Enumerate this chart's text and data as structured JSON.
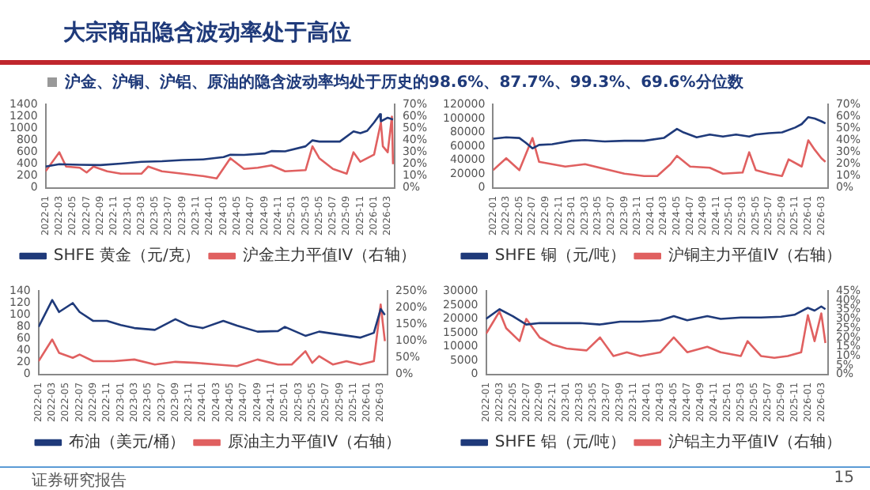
{
  "chart_data": [
    {
      "type": "other",
      "title": "大宗商品隐含波动率处于高位",
      "subtitle": "沪金、沪铜、沪铝、原油的隐含波动率均处于历史的98.6%、87.7%、99.3%、69.6%分位数",
      "annotations": [
        "证券研究报告",
        "15"
      ]
    },
    {
      "type": "line",
      "legend": "bottom",
      "marker": "none",
      "xlim": [
        "2022-01",
        "2026-04"
      ],
      "xticks": [
        "2022-01",
        "2022-03",
        "2022-05",
        "2022-07",
        "2022-09",
        "2022-11",
        "2023-01",
        "2023-03",
        "2023-05",
        "2023-07",
        "2023-09",
        "2023-11",
        "2024-01",
        "2024-03",
        "2024-05",
        "2024-07",
        "2024-09",
        "2024-11",
        "2025-01",
        "2025-03",
        "2025-05",
        "2025-07",
        "2025-09",
        "2025-11",
        "2026-01",
        "2026-03"
      ],
      "ylim": [
        0,
        1400
      ],
      "yticks": [
        0,
        200,
        400,
        600,
        800,
        1000,
        1200,
        1400
      ],
      "y2lim": [
        0,
        70
      ],
      "y2ticks": [
        {
          "value": 0,
          "label": "0%"
        },
        {
          "value": 10,
          "label": "10%"
        },
        {
          "value": 20,
          "label": "20%"
        },
        {
          "value": 30,
          "label": "30%"
        },
        {
          "value": 40,
          "label": "40%"
        },
        {
          "value": 50,
          "label": "50%"
        },
        {
          "value": 60,
          "label": "60%"
        },
        {
          "value": 70,
          "label": "70%"
        }
      ],
      "series": [
        {
          "name": "SHFE 黄金（元/克）",
          "color": "#1f3a7a",
          "x": [
            "2022-01",
            "2022-03",
            "2022-06",
            "2022-09",
            "2022-12",
            "2023-03",
            "2023-06",
            "2023-09",
            "2023-12",
            "2024-03",
            "2024-04",
            "2024-06",
            "2024-09",
            "2024-10",
            "2024-12",
            "2025-03",
            "2025-04",
            "2025-05",
            "2025-08",
            "2025-10",
            "2025-11",
            "2025-12",
            "2026-01",
            "2026-01-28",
            "2026-02",
            "2026-03",
            "2026-03-25"
          ],
          "values": [
            360,
            400,
            390,
            385,
            410,
            440,
            450,
            470,
            480,
            520,
            560,
            555,
            580,
            620,
            615,
            700,
            800,
            780,
            780,
            950,
            920,
            960,
            1100,
            1240,
            1120,
            1180,
            1150
          ]
        },
        {
          "name": "沪金主力平值IV（右轴）",
          "color": "#e06060",
          "axis": "y2",
          "x": [
            "2022-01",
            "2022-03",
            "2022-04",
            "2022-06",
            "2022-07",
            "2022-08",
            "2022-10",
            "2022-12",
            "2023-03",
            "2023-04",
            "2023-06",
            "2023-09",
            "2023-12",
            "2024-02",
            "2024-04",
            "2024-06",
            "2024-08",
            "2024-10",
            "2024-12",
            "2025-03",
            "2025-04",
            "2025-05",
            "2025-07",
            "2025-09",
            "2025-10",
            "2025-11",
            "2025-12",
            "2026-01",
            "2026-02",
            "2026-02-10",
            "2026-03",
            "2026-03-20",
            "2026-03-25"
          ],
          "values": [
            14,
            30,
            18,
            17,
            13,
            18,
            14,
            12,
            12,
            18,
            14,
            12,
            10,
            8,
            25,
            16,
            17,
            19,
            14,
            15,
            35,
            25,
            16,
            12,
            30,
            22,
            25,
            28,
            55,
            35,
            30,
            60,
            20
          ]
        }
      ]
    },
    {
      "type": "line",
      "legend": "bottom",
      "marker": "none",
      "xlim": [
        "2022-01",
        "2026-04"
      ],
      "xticks": [
        "2022-01",
        "2022-03",
        "2022-05",
        "2022-07",
        "2022-09",
        "2022-11",
        "2023-01",
        "2023-03",
        "2023-05",
        "2023-07",
        "2023-09",
        "2023-11",
        "2024-01",
        "2024-03",
        "2024-05",
        "2024-07",
        "2024-09",
        "2024-11",
        "2025-01",
        "2025-03",
        "2025-05",
        "2025-07",
        "2025-09",
        "2025-11",
        "2026-01",
        "2026-03"
      ],
      "ylim": [
        0,
        120000
      ],
      "yticks": [
        0,
        20000,
        40000,
        60000,
        80000,
        100000,
        120000
      ],
      "y2lim": [
        0,
        70
      ],
      "y2ticks": [
        {
          "value": 0,
          "label": "0%"
        },
        {
          "value": 10,
          "label": "10%"
        },
        {
          "value": 20,
          "label": "20%"
        },
        {
          "value": 30,
          "label": "30%"
        },
        {
          "value": 40,
          "label": "40%"
        },
        {
          "value": 50,
          "label": "50%"
        },
        {
          "value": 60,
          "label": "60%"
        },
        {
          "value": 70,
          "label": "70%"
        }
      ],
      "series": [
        {
          "name": "SHFE 铜（元/吨）",
          "color": "#1f3a7a",
          "x": [
            "2022-01",
            "2022-03",
            "2022-05",
            "2022-06",
            "2022-07",
            "2022-08",
            "2022-10",
            "2023-01",
            "2023-03",
            "2023-06",
            "2023-09",
            "2023-12",
            "2024-03",
            "2024-05",
            "2024-06",
            "2024-08",
            "2024-10",
            "2024-12",
            "2025-02",
            "2025-04",
            "2025-05",
            "2025-07",
            "2025-09",
            "2025-11",
            "2025-12",
            "2026-01",
            "2026-02",
            "2026-03",
            "2026-03-20"
          ],
          "values": [
            71000,
            73000,
            72000,
            65000,
            57000,
            62000,
            63000,
            68000,
            69000,
            67000,
            68000,
            68000,
            72000,
            85000,
            80000,
            73000,
            77000,
            74000,
            77000,
            74000,
            77000,
            79000,
            80000,
            87000,
            92000,
            102000,
            100000,
            96000,
            93000
          ]
        },
        {
          "name": "沪铜主力平值IV（右轴）",
          "color": "#e06060",
          "axis": "y2",
          "x": [
            "2022-01",
            "2022-03",
            "2022-05",
            "2022-07",
            "2022-08",
            "2022-10",
            "2022-12",
            "2023-03",
            "2023-06",
            "2023-09",
            "2023-12",
            "2024-02",
            "2024-04",
            "2024-05",
            "2024-07",
            "2024-10",
            "2024-12",
            "2025-03",
            "2025-04",
            "2025-05",
            "2025-07",
            "2025-09",
            "2025-10",
            "2025-12",
            "2026-01",
            "2026-02",
            "2026-03",
            "2026-03-20"
          ],
          "values": [
            15,
            25,
            15,
            42,
            22,
            20,
            18,
            20,
            16,
            12,
            10,
            10,
            20,
            27,
            18,
            17,
            12,
            13,
            30,
            15,
            12,
            10,
            24,
            18,
            40,
            32,
            25,
            22
          ]
        }
      ]
    },
    {
      "type": "line",
      "legend": "bottom",
      "marker": "none",
      "xlim": [
        "2022-01",
        "2026-04"
      ],
      "xticks": [
        "2022-01",
        "2022-03",
        "2022-05",
        "2022-07",
        "2022-09",
        "2022-11",
        "2023-01",
        "2023-03",
        "2023-05",
        "2023-07",
        "2023-09",
        "2023-11",
        "2024-01",
        "2024-03",
        "2024-05",
        "2024-07",
        "2024-09",
        "2024-11",
        "2025-01",
        "2025-03",
        "2025-05",
        "2025-07",
        "2025-09",
        "2025-11",
        "2026-01",
        "2026-03"
      ],
      "ylim": [
        0,
        140
      ],
      "yticks": [
        0,
        20,
        40,
        60,
        80,
        100,
        120,
        140
      ],
      "y2lim": [
        0,
        250
      ],
      "y2ticks": [
        {
          "value": 0,
          "label": "0%"
        },
        {
          "value": 50,
          "label": "50%"
        },
        {
          "value": 100,
          "label": "100%"
        },
        {
          "value": 150,
          "label": "150%"
        },
        {
          "value": 200,
          "label": "200%"
        },
        {
          "value": 250,
          "label": "250%"
        }
      ],
      "series": [
        {
          "name": "布油（美元/桶）",
          "color": "#1f3a7a",
          "x": [
            "2022-01",
            "2022-03",
            "2022-04",
            "2022-06",
            "2022-07",
            "2022-09",
            "2022-11",
            "2023-01",
            "2023-03",
            "2023-06",
            "2023-09",
            "2023-11",
            "2024-01",
            "2024-04",
            "2024-06",
            "2024-09",
            "2024-12",
            "2025-01",
            "2025-04",
            "2025-06",
            "2025-09",
            "2025-12",
            "2026-02",
            "2026-03",
            "2026-03-20"
          ],
          "values": [
            80,
            125,
            105,
            120,
            105,
            90,
            90,
            83,
            78,
            75,
            93,
            82,
            78,
            90,
            82,
            72,
            73,
            80,
            65,
            72,
            67,
            62,
            70,
            110,
            100
          ]
        },
        {
          "name": "原油主力平值IV（右轴）",
          "color": "#e06060",
          "axis": "y2",
          "x": [
            "2022-01",
            "2022-03",
            "2022-04",
            "2022-06",
            "2022-07",
            "2022-09",
            "2022-12",
            "2023-03",
            "2023-06",
            "2023-09",
            "2023-12",
            "2024-03",
            "2024-06",
            "2024-09",
            "2024-12",
            "2025-02",
            "2025-04",
            "2025-05",
            "2025-06",
            "2025-08",
            "2025-10",
            "2025-12",
            "2026-02",
            "2026-03",
            "2026-03-20"
          ],
          "values": [
            40,
            105,
            65,
            50,
            60,
            40,
            40,
            45,
            30,
            38,
            35,
            30,
            25,
            45,
            30,
            30,
            70,
            35,
            55,
            30,
            40,
            30,
            40,
            210,
            100
          ]
        }
      ]
    },
    {
      "type": "line",
      "legend": "bottom",
      "marker": "none",
      "xlim": [
        "2022-01",
        "2026-04"
      ],
      "xticks": [
        "2022-01",
        "2022-03",
        "2022-05",
        "2022-07",
        "2022-09",
        "2022-11",
        "2023-01",
        "2023-03",
        "2023-05",
        "2023-07",
        "2023-09",
        "2023-11",
        "2024-01",
        "2024-03",
        "2024-05",
        "2024-07",
        "2024-09",
        "2024-11",
        "2025-01",
        "2025-03",
        "2025-05",
        "2025-07",
        "2025-09",
        "2025-11",
        "2026-01",
        "2026-03"
      ],
      "ylim": [
        0,
        30000
      ],
      "yticks": [
        0,
        5000,
        10000,
        15000,
        20000,
        25000,
        30000
      ],
      "y2lim": [
        0,
        45
      ],
      "y2ticks": [
        {
          "value": 0,
          "label": "0%"
        },
        {
          "value": 5,
          "label": "5%"
        },
        {
          "value": 10,
          "label": "10%"
        },
        {
          "value": 15,
          "label": "15%"
        },
        {
          "value": 20,
          "label": "20%"
        },
        {
          "value": 25,
          "label": "25%"
        },
        {
          "value": 30,
          "label": "30%"
        },
        {
          "value": 35,
          "label": "35%"
        },
        {
          "value": 40,
          "label": "40%"
        },
        {
          "value": 45,
          "label": "45%"
        }
      ],
      "series": [
        {
          "name": "SHFE 铝（元/吨）",
          "color": "#1f3a7a",
          "x": [
            "2022-01",
            "2022-03",
            "2022-05",
            "2022-07",
            "2022-09",
            "2022-12",
            "2023-03",
            "2023-06",
            "2023-09",
            "2023-12",
            "2024-03",
            "2024-05",
            "2024-07",
            "2024-10",
            "2024-12",
            "2025-03",
            "2025-06",
            "2025-09",
            "2025-11",
            "2026-01",
            "2026-02",
            "2026-03",
            "2026-03-20"
          ],
          "values": [
            20000,
            23500,
            21000,
            18000,
            18500,
            18500,
            18500,
            18000,
            19000,
            19000,
            19500,
            21000,
            19500,
            21000,
            20000,
            20500,
            20500,
            20800,
            21500,
            24000,
            23000,
            24500,
            23500
          ]
        },
        {
          "name": "沪铝主力平值IV（右轴）",
          "color": "#e06060",
          "axis": "y2",
          "x": [
            "2022-01",
            "2022-02",
            "2022-03",
            "2022-04",
            "2022-06",
            "2022-07",
            "2022-09",
            "2022-11",
            "2023-01",
            "2023-04",
            "2023-06",
            "2023-08",
            "2023-10",
            "2023-12",
            "2024-03",
            "2024-05",
            "2024-07",
            "2024-10",
            "2024-12",
            "2025-03",
            "2025-04",
            "2025-06",
            "2025-08",
            "2025-10",
            "2025-12",
            "2026-01",
            "2026-02",
            "2026-03",
            "2026-03-20"
          ],
          "values": [
            22,
            28,
            34,
            25,
            18,
            30,
            20,
            16,
            14,
            13,
            20,
            10,
            12,
            10,
            12,
            20,
            12,
            15,
            12,
            10,
            18,
            10,
            9,
            10,
            12,
            32,
            18,
            33,
            17
          ]
        }
      ]
    }
  ]
}
